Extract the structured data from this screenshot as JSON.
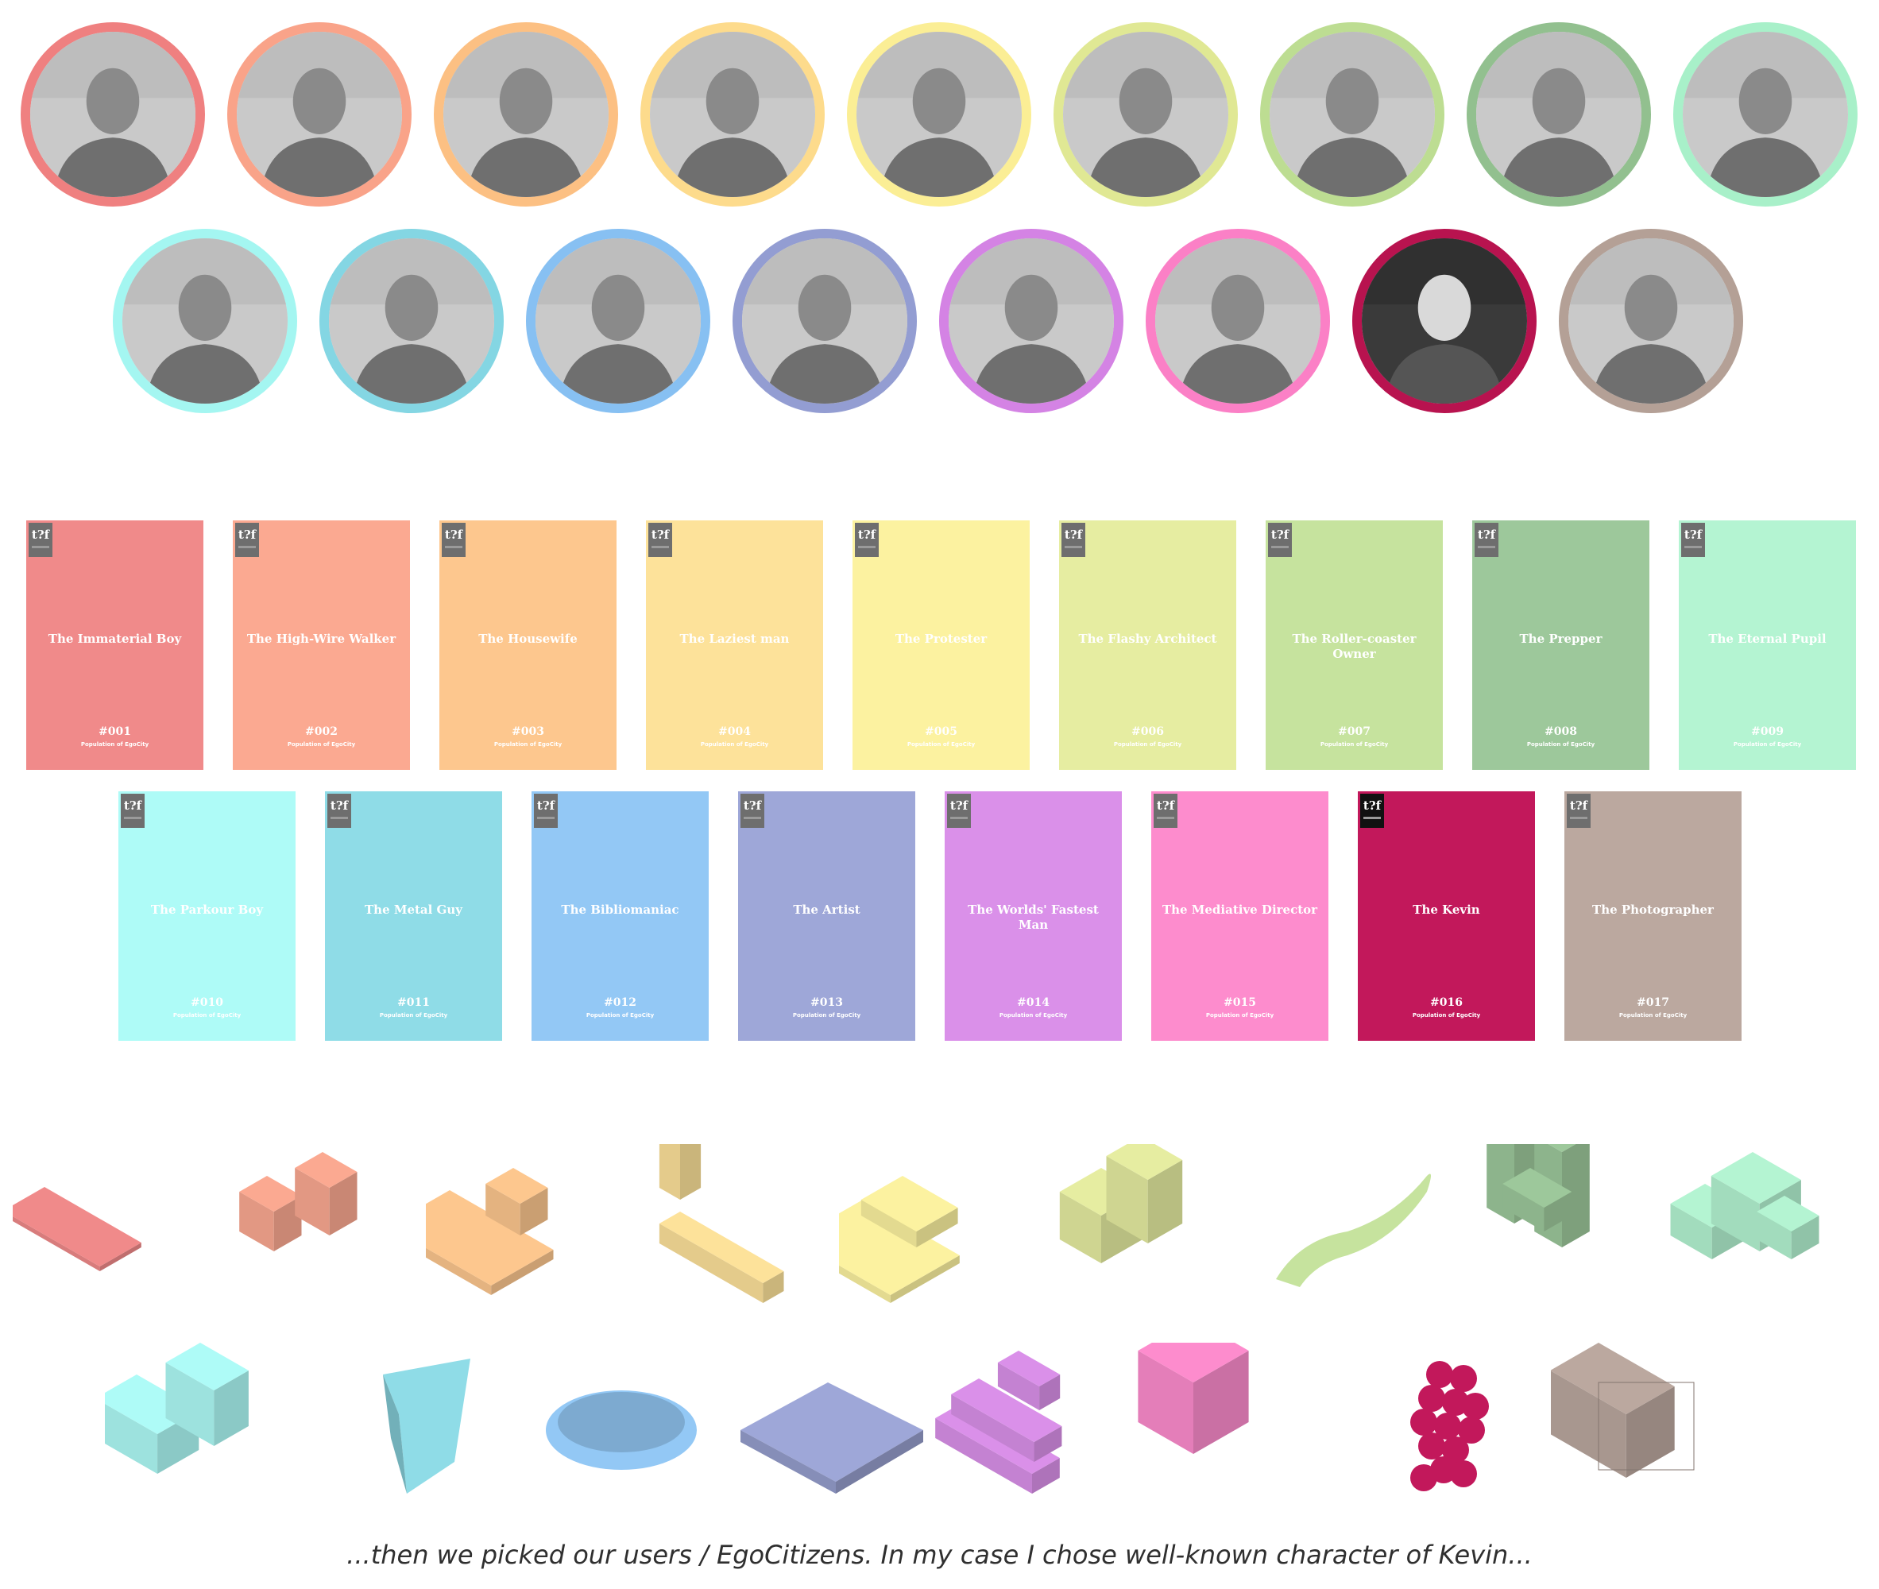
{
  "citizens": [
    {
      "title": "The Immaterial Boy",
      "number": "#001",
      "color": "#f08a8a",
      "ring": "#ef8080"
    },
    {
      "title": "The High-Wire Walker",
      "number": "#002",
      "color": "#fba991",
      "ring": "#f9a389"
    },
    {
      "title": "The Housewife",
      "number": "#003",
      "color": "#fdc78e",
      "ring": "#fcc083"
    },
    {
      "title": "The Laziest man",
      "number": "#004",
      "color": "#fde29a",
      "ring": "#fddb8c"
    },
    {
      "title": "The Protester",
      "number": "#005",
      "color": "#fcf2a0",
      "ring": "#fbee95"
    },
    {
      "title": "The Flashy Architect",
      "number": "#006",
      "color": "#e6eda1",
      "ring": "#e0e894"
    },
    {
      "title": "The Roller-coaster Owner",
      "number": "#007",
      "color": "#c6e39e",
      "ring": "#bddd92"
    },
    {
      "title": "The Prepper",
      "number": "#008",
      "color": "#9dc89b",
      "ring": "#92c08f"
    },
    {
      "title": "The Eternal Pupil",
      "number": "#009",
      "color": "#b4f4d2",
      "ring": "#a8f0c9"
    },
    {
      "title": "The Parkour Boy",
      "number": "#010",
      "color": "#aefbf7",
      "ring": "#a4f6f1"
    },
    {
      "title": "The Metal Guy",
      "number": "#011",
      "color": "#8fdce7",
      "ring": "#84d6e3"
    },
    {
      "title": "The Bibliomaniac",
      "number": "#012",
      "color": "#93c8f5",
      "ring": "#87c0f2"
    },
    {
      "title": "The Artist",
      "number": "#013",
      "color": "#9ea7d8",
      "ring": "#939dd2"
    },
    {
      "title": "The Worlds' Fastest Man",
      "number": "#014",
      "color": "#da90e9",
      "ring": "#d483e4"
    },
    {
      "title": "The Mediative Director",
      "number": "#015",
      "color": "#fd8ccd",
      "ring": "#fb80c6"
    },
    {
      "title": "The Kevin",
      "number": "#016",
      "color": "#c2185b",
      "ring": "#b8134f"
    },
    {
      "title": "The Photographer",
      "number": "#017",
      "color": "#bba89f",
      "ring": "#b4a096"
    }
  ],
  "card_subtitle": "Population of EgoCity",
  "logo_text": "t?f",
  "portrait_icon": "grayscale-portrait-photo",
  "caption": "...then we picked our users / EgoCitizens. In my case I chose well-known character of Kevin..."
}
